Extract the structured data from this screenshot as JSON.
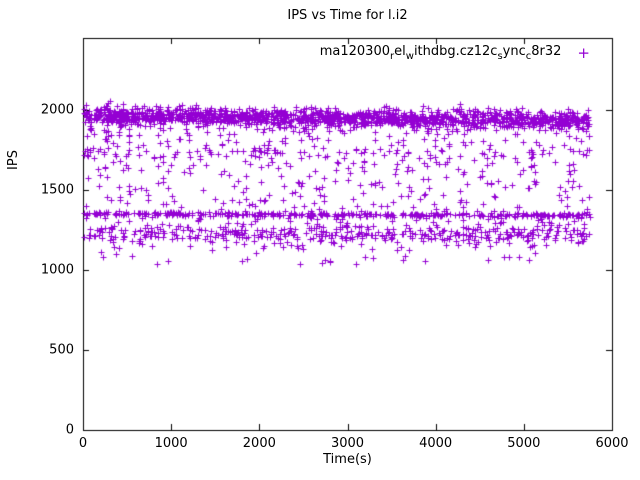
{
  "title": "IPS vs Time for l.i2",
  "colors": {
    "points": "#9400d3",
    "axis": "#000000",
    "background": "#ffffff",
    "text": "#000000"
  },
  "legend": {
    "marker": "+",
    "plain_name": "ma120300_rel_with_dbg.cz12c_sync_c8r32",
    "segments": [
      {
        "t": "ma120300",
        "sub": false
      },
      {
        "t": "r",
        "sub": true
      },
      {
        "t": "el",
        "sub": false
      },
      {
        "t": "w",
        "sub": true
      },
      {
        "t": "ithdbg.cz12c",
        "sub": false
      },
      {
        "t": "s",
        "sub": true
      },
      {
        "t": "ync",
        "sub": false
      },
      {
        "t": "c",
        "sub": true
      },
      {
        "t": "8r32",
        "sub": false
      }
    ]
  },
  "axes": {
    "x": {
      "label": "Time(s)",
      "min": 0,
      "max": 6000,
      "ticks": [
        0,
        1000,
        2000,
        3000,
        4000,
        5000,
        6000
      ]
    },
    "y": {
      "label": "IPS",
      "min": 0,
      "max": 2450,
      "ticks": [
        0,
        500,
        1000,
        1500,
        2000
      ]
    }
  },
  "chart_data": {
    "type": "scatter",
    "title": "IPS vs Time for l.i2",
    "xlabel": "Time(s)",
    "ylabel": "IPS",
    "xlim": [
      0,
      6000
    ],
    "ylim": [
      0,
      2450
    ],
    "grid": false,
    "legend_position": "top-right-inside",
    "series": [
      {
        "name": "ma120300_rel_with_dbg.cz12c_sync_c8r32",
        "marker": "+",
        "color": "#9400d3",
        "x_data_range": [
          0,
          5750
        ],
        "summary": "Dense band of ~2000 IPS samples slightly declining to ~1950 over 5750s; a tight horizontal line near 1350; a moderate band 1150-1300; sparse scatter 1300-1950; rare outliers down to ~1030."
      }
    ],
    "generator": {
      "seed": 42,
      "count": 2900,
      "x_min": 3,
      "x_max": 5750,
      "bands": [
        {
          "name": "top-dense",
          "weight": 0.52,
          "y_mean": 1965,
          "y_sd": 28,
          "drift": -25
        },
        {
          "name": "mid-line",
          "weight": 0.12,
          "y_mean": 1352,
          "y_sd": 7,
          "drift": -10
        },
        {
          "name": "low-band",
          "weight": 0.14,
          "y_mean": 1230,
          "y_sd": 35,
          "drift": 0
        },
        {
          "name": "fringe",
          "weight": 0.09,
          "y_min": 1700,
          "y_max": 1950
        },
        {
          "name": "mid-scatter",
          "weight": 0.11,
          "y_min": 1300,
          "y_max": 1750
        },
        {
          "name": "outliers",
          "weight": 0.02,
          "y_min": 1030,
          "y_max": 1280
        }
      ],
      "y_clamp": [
        1020,
        2055
      ]
    }
  }
}
